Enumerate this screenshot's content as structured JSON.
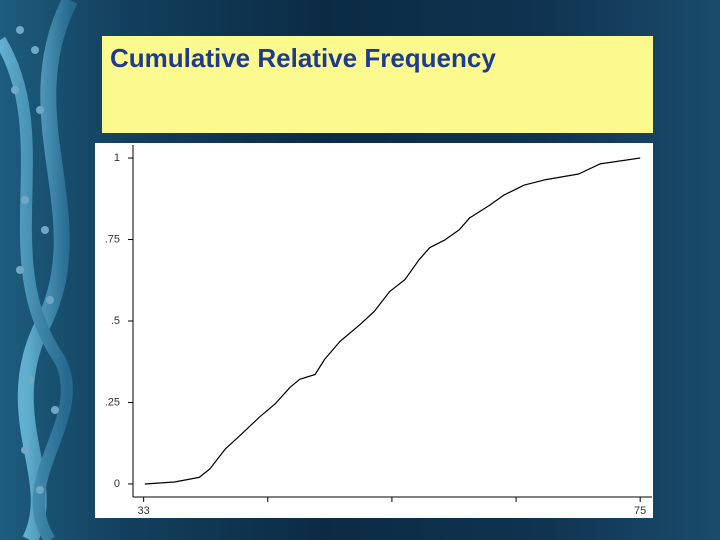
{
  "chart_data": {
    "type": "line",
    "title": "Cumulative Relative Frequency",
    "x": [
      33.1,
      35.6,
      37.7,
      38.6,
      39.9,
      41.1,
      42.8,
      44.1,
      45.4,
      46.2,
      47.5,
      48.3,
      49.6,
      51.3,
      52.5,
      53.8,
      55.1,
      56.3,
      57.2,
      58.5,
      59.7,
      60.6,
      62.3,
      63.5,
      65.2,
      66.9,
      69.8,
      71.6,
      75
    ],
    "values": [
      0,
      0.006,
      0.02,
      0.046,
      0.107,
      0.147,
      0.205,
      0.245,
      0.297,
      0.321,
      0.336,
      0.382,
      0.437,
      0.489,
      0.529,
      0.59,
      0.627,
      0.688,
      0.725,
      0.749,
      0.78,
      0.817,
      0.856,
      0.887,
      0.917,
      0.933,
      0.951,
      0.982,
      1
    ],
    "color": "#000000",
    "xlim": [
      32.1,
      76
    ],
    "xticks": [
      33,
      75
    ],
    "xminorticks": [
      43.5,
      54,
      64.5
    ],
    "ylim": [
      -0.04,
      1.04
    ],
    "yticks": [
      0,
      {
        "value": 0.25,
        "label": ".25"
      },
      {
        "value": 0.5,
        "label": ".5"
      },
      {
        "value": 0.75,
        "label": ".75"
      },
      1
    ]
  }
}
